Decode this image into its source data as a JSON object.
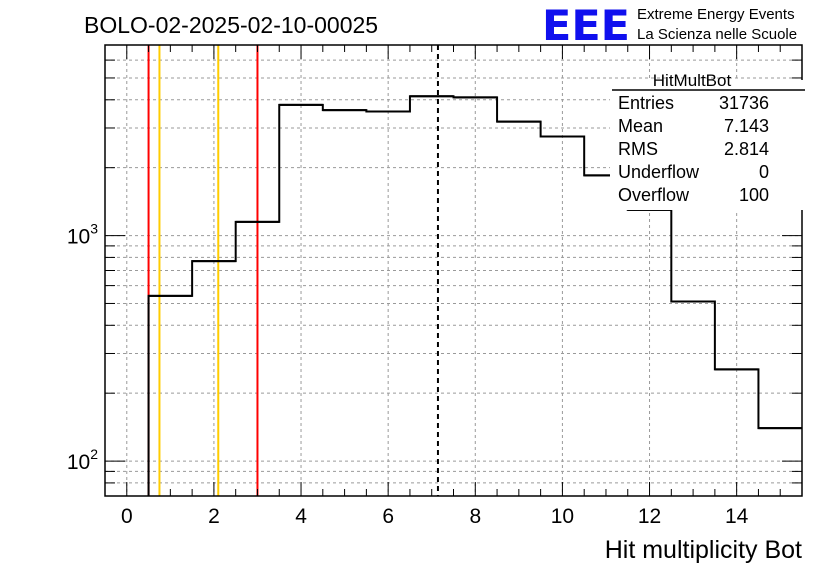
{
  "title": "BOLO-02-2025-02-10-00025",
  "logo": {
    "mark": "EEE",
    "line1": "Extreme Energy Events",
    "line2": "La Scienza nelle Scuole",
    "color": "#1010ee"
  },
  "stats": {
    "name": "HitMultBot",
    "rows": [
      {
        "label": "Entries",
        "value": "31736"
      },
      {
        "label": "Mean",
        "value": "7.143"
      },
      {
        "label": "RMS",
        "value": "2.814"
      },
      {
        "label": "Underflow",
        "value": "0"
      },
      {
        "label": "Overflow",
        "value": "100"
      }
    ]
  },
  "chart_data": {
    "type": "histogram",
    "xlabel": "Hit multiplicity Bot",
    "ylabel": "",
    "xlim": [
      -0.5,
      15.5
    ],
    "ylim": [
      70,
      7000
    ],
    "yscale": "log",
    "grid": true,
    "x_ticks": [
      0,
      2,
      4,
      6,
      8,
      10,
      12,
      14
    ],
    "y_tick_labels": [
      {
        "value": 100,
        "base": "10",
        "exp": "2"
      },
      {
        "value": 1000,
        "base": "10",
        "exp": "3"
      }
    ],
    "bin_edges": [
      0.5,
      1.5,
      2.5,
      3.5,
      4.5,
      5.5,
      6.5,
      7.5,
      8.5,
      9.5,
      10.5,
      11.5,
      12.5,
      13.5,
      14.5,
      15.5
    ],
    "counts": [
      540,
      770,
      1150,
      3800,
      3600,
      3550,
      4150,
      4100,
      3200,
      2750,
      1850,
      1300,
      510,
      255,
      140
    ],
    "vertical_lines": [
      {
        "x": 0.5,
        "color": "#ff0000",
        "style": "solid"
      },
      {
        "x": 0.75,
        "color": "#ffcc00",
        "style": "solid"
      },
      {
        "x": 2.1,
        "color": "#ffcc00",
        "style": "solid"
      },
      {
        "x": 3.0,
        "color": "#ff0000",
        "style": "solid"
      },
      {
        "x": 7.143,
        "color": "#000000",
        "style": "dashed"
      }
    ],
    "line_color": "#000000"
  }
}
